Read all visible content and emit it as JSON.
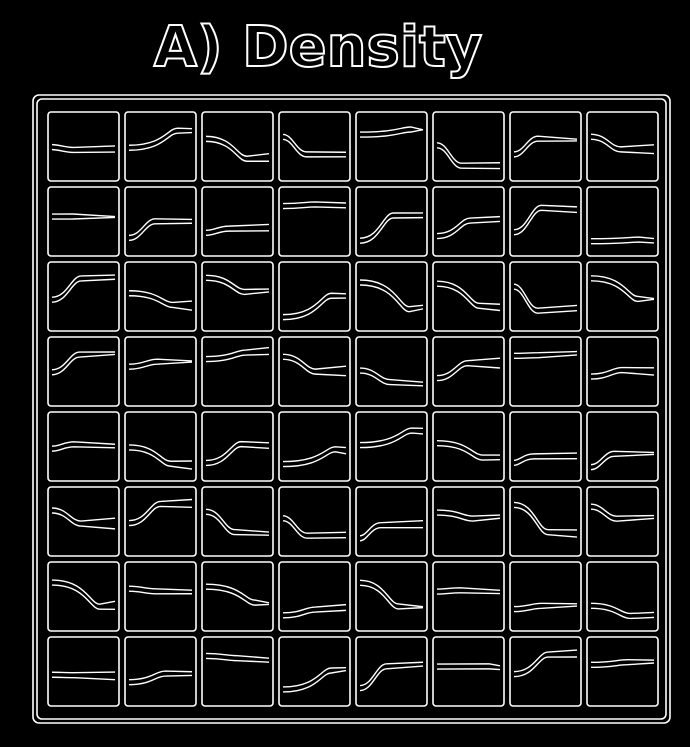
{
  "title": "A) Density"
}
